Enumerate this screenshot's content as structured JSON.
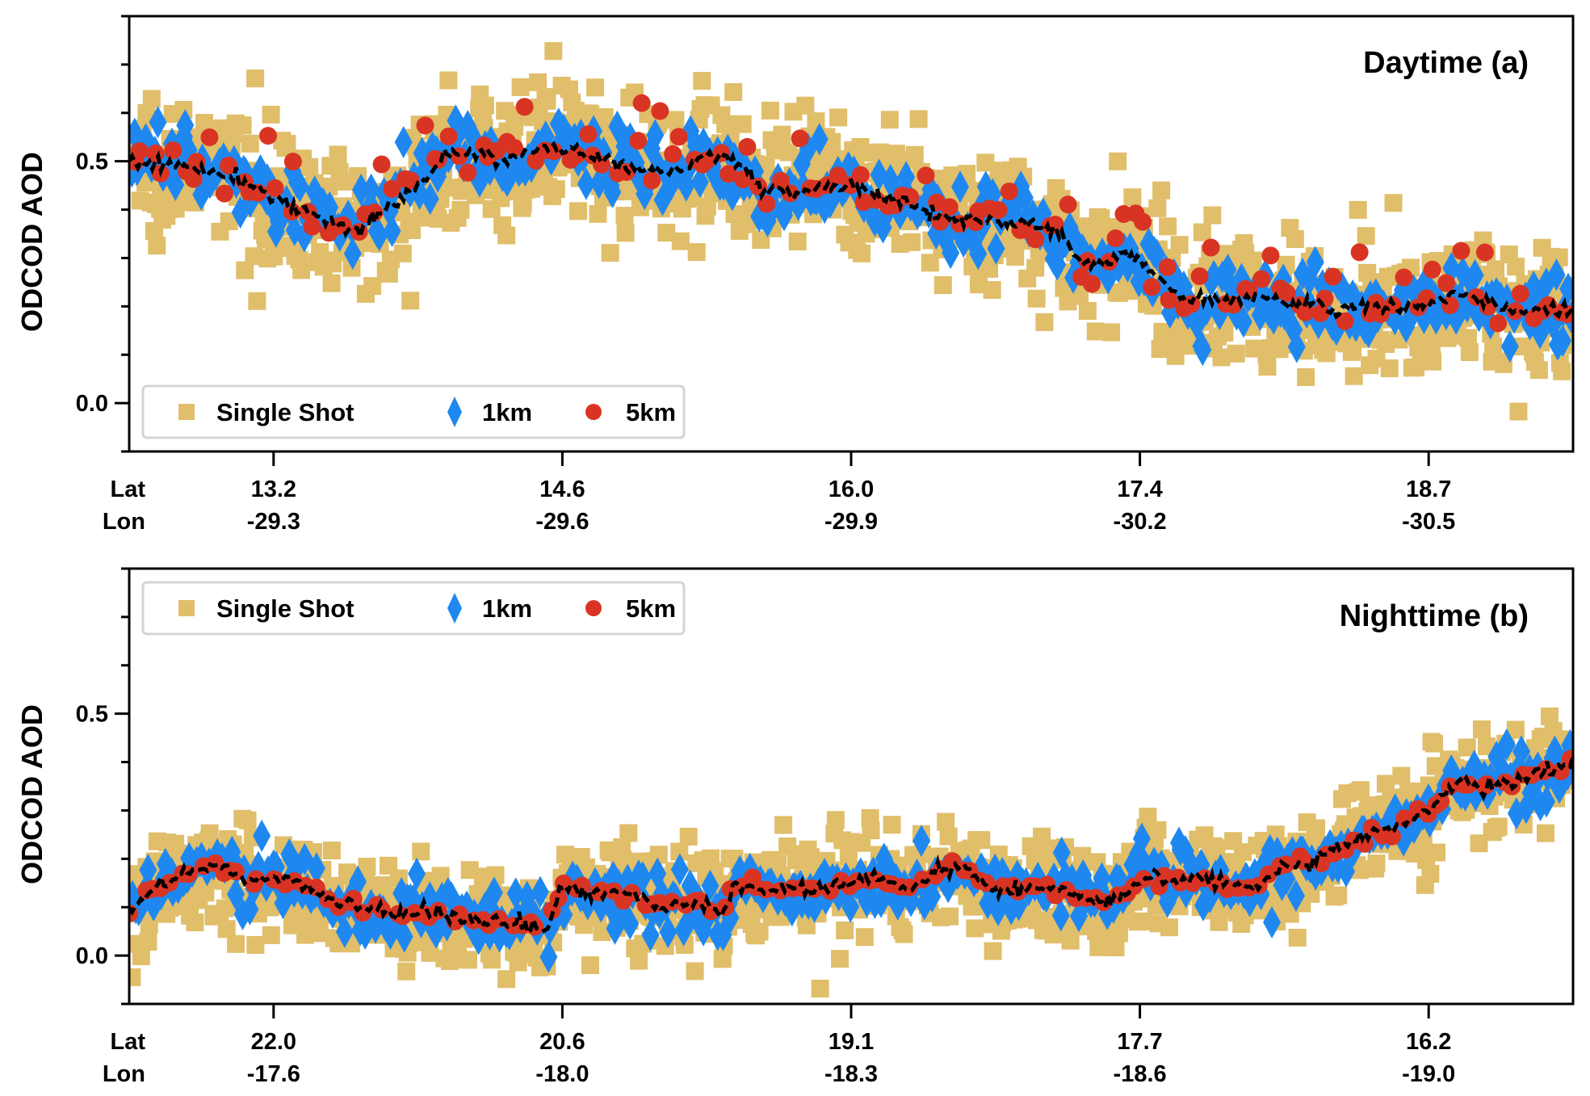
{
  "chart_data": [
    {
      "type": "scatter",
      "title": "Daytime (a)",
      "xlabel_rows": [
        "Lat",
        "Lon"
      ],
      "ylabel": "ODCOD AOD",
      "ylim": [
        -0.1,
        0.8
      ],
      "yticks_major": [
        0.0,
        0.5
      ],
      "yticks_major_labels": [
        "0.0",
        "0.5"
      ],
      "yticks_minor_step": 0.1,
      "x_range": [
        0,
        100
      ],
      "xticks": [
        {
          "pos": 10,
          "lat": "13.2",
          "lon": "-29.3"
        },
        {
          "pos": 30,
          "lat": "14.6",
          "lon": "-29.6"
        },
        {
          "pos": 50,
          "lat": "16.0",
          "lon": "-29.9"
        },
        {
          "pos": 70,
          "lat": "17.4",
          "lon": "-30.2"
        },
        {
          "pos": 90,
          "lat": "18.7",
          "lon": "-30.5"
        }
      ],
      "legend": {
        "placement": "bottom-left",
        "entries": [
          "Single Shot",
          "1km",
          "5km"
        ]
      },
      "series": [
        {
          "name": "Single Shot",
          "marker": "square",
          "color": "#E0BE6A",
          "spread": 0.09
        },
        {
          "name": "1km",
          "marker": "diamond",
          "color": "#1E88F0",
          "spread": 0.05
        },
        {
          "name": "5km",
          "marker": "circle",
          "color": "#D93423",
          "spread": 0.03
        },
        {
          "name": "Mean",
          "marker": "dashed-line",
          "color": "#000000"
        }
      ],
      "trend": {
        "x": [
          0,
          4,
          8,
          12,
          15,
          16,
          18,
          20,
          22,
          24,
          26,
          28,
          30,
          34,
          38,
          40,
          42,
          44,
          46,
          50,
          54,
          58,
          62,
          64,
          66,
          67,
          69,
          70,
          72,
          73,
          75,
          78,
          82,
          86,
          90,
          92,
          94,
          96,
          100
        ],
        "y": [
          0.5,
          0.49,
          0.46,
          0.4,
          0.36,
          0.36,
          0.41,
          0.45,
          0.51,
          0.52,
          0.5,
          0.52,
          0.53,
          0.49,
          0.48,
          0.51,
          0.5,
          0.44,
          0.44,
          0.45,
          0.41,
          0.38,
          0.37,
          0.36,
          0.29,
          0.28,
          0.31,
          0.29,
          0.24,
          0.22,
          0.21,
          0.22,
          0.2,
          0.2,
          0.2,
          0.23,
          0.21,
          0.19,
          0.2
        ]
      }
    },
    {
      "type": "scatter",
      "title": "Nighttime (b)",
      "xlabel_rows": [
        "Lat",
        "Lon"
      ],
      "ylabel": "ODCOD AOD",
      "ylim": [
        -0.1,
        0.8
      ],
      "yticks_major": [
        0.0,
        0.5
      ],
      "yticks_major_labels": [
        "0.0",
        "0.5"
      ],
      "yticks_minor_step": 0.1,
      "x_range": [
        0,
        100
      ],
      "xticks": [
        {
          "pos": 10,
          "lat": "22.0",
          "lon": "-17.6"
        },
        {
          "pos": 30,
          "lat": "20.6",
          "lon": "-18.0"
        },
        {
          "pos": 50,
          "lat": "19.1",
          "lon": "-18.3"
        },
        {
          "pos": 70,
          "lat": "17.7",
          "lon": "-18.6"
        },
        {
          "pos": 90,
          "lat": "16.2",
          "lon": "-19.0"
        }
      ],
      "legend": {
        "placement": "top-left",
        "entries": [
          "Single Shot",
          "1km",
          "5km"
        ]
      },
      "series": [
        {
          "name": "Single Shot",
          "marker": "square",
          "color": "#E0BE6A",
          "spread": 0.07
        },
        {
          "name": "1km",
          "marker": "diamond",
          "color": "#1E88F0",
          "spread": 0.04
        },
        {
          "name": "5km",
          "marker": "circle",
          "color": "#D93423",
          "spread": 0.012
        },
        {
          "name": "Mean",
          "marker": "dashed-line",
          "color": "#000000"
        }
      ],
      "trend": {
        "x": [
          0,
          2,
          4,
          6,
          8,
          10,
          12,
          14,
          16,
          18,
          20,
          22,
          24,
          26,
          28,
          29,
          30,
          32,
          34,
          36,
          38,
          40,
          41,
          42,
          44,
          48,
          50,
          52,
          54,
          56,
          58,
          60,
          62,
          64,
          66,
          68,
          70,
          72,
          74,
          76,
          78,
          80,
          82,
          84,
          86,
          88,
          90,
          92,
          94,
          96,
          98,
          100
        ],
        "y": [
          0.09,
          0.15,
          0.17,
          0.19,
          0.16,
          0.16,
          0.15,
          0.11,
          0.1,
          0.09,
          0.09,
          0.08,
          0.07,
          0.07,
          0.06,
          0.06,
          0.14,
          0.13,
          0.13,
          0.11,
          0.1,
          0.11,
          0.08,
          0.15,
          0.14,
          0.14,
          0.15,
          0.16,
          0.13,
          0.18,
          0.18,
          0.13,
          0.14,
          0.14,
          0.12,
          0.11,
          0.16,
          0.16,
          0.16,
          0.15,
          0.14,
          0.19,
          0.19,
          0.23,
          0.25,
          0.27,
          0.3,
          0.36,
          0.35,
          0.36,
          0.38,
          0.4
        ]
      }
    }
  ]
}
